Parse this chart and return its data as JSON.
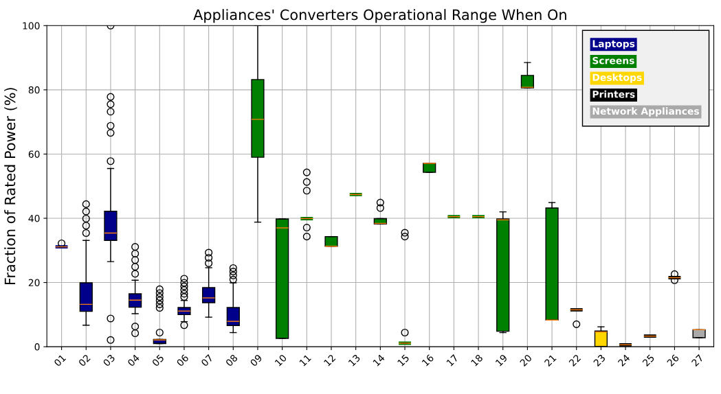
{
  "chart_data": {
    "type": "box",
    "title": "Appliances' Converters Operational Range When On",
    "ylabel": "Fraction of Rated Power (%)",
    "categories": [
      "01",
      "02",
      "03",
      "04",
      "05",
      "06",
      "07",
      "08",
      "09",
      "10",
      "11",
      "12",
      "13",
      "14",
      "15",
      "16",
      "17",
      "18",
      "19",
      "20",
      "21",
      "22",
      "23",
      "24",
      "25",
      "26",
      "27"
    ],
    "ylim": [
      0,
      100
    ],
    "yticks": [
      0,
      20,
      40,
      60,
      80,
      100
    ],
    "grid": true,
    "legend": "top right",
    "series": [
      {
        "name": "Laptops",
        "color": "#00008b",
        "boxes": [
          {
            "low": 31.1,
            "q1": 31.1,
            "median": 31.1,
            "q3": 31.1,
            "high": 31.1,
            "outliers": [
              32.2
            ]
          },
          {
            "low": 6.7,
            "q1": 11.0,
            "median": 13.2,
            "q3": 19.9,
            "high": 33.1,
            "outliers": [
              35.4,
              37.7,
              39.9,
              42.1,
              44.4
            ]
          },
          {
            "low": 26.5,
            "q1": 33.1,
            "median": 35.4,
            "q3": 42.2,
            "high": 55.5,
            "outliers": [
              2.1,
              8.8,
              57.8,
              66.6,
              68.8,
              73.2,
              75.5,
              77.8,
              100
            ]
          },
          {
            "low": 10.3,
            "q1": 12.3,
            "median": 14.5,
            "q3": 16.5,
            "high": 20.7,
            "outliers": [
              4.2,
              6.3,
              22.7,
              24.9,
              27.0,
              29.0,
              31.1
            ]
          },
          {
            "low": 1.0,
            "q1": 1.0,
            "median": 2.1,
            "q3": 2.3,
            "high": 2.3,
            "outliers": [
              4.4,
              12.1,
              13.2,
              14.4,
              15.5,
              16.7,
              17.9
            ]
          },
          {
            "low": 7.8,
            "q1": 10.0,
            "median": 11.1,
            "q3": 12.2,
            "high": 14.4,
            "outliers": [
              6.7,
              15.5,
              16.5,
              17.7,
              18.8,
              19.9,
              21.2
            ]
          },
          {
            "low": 9.2,
            "q1": 13.7,
            "median": 15.2,
            "q3": 18.4,
            "high": 24.6,
            "outliers": [
              26.0,
              27.7,
              29.3
            ]
          },
          {
            "low": 4.4,
            "q1": 6.6,
            "median": 7.9,
            "q3": 12.2,
            "high": 19.9,
            "outliers": [
              20.9,
              22.2,
              23.4,
              24.5
            ]
          },
          null,
          null,
          null,
          null,
          null,
          null,
          null,
          null,
          null,
          null,
          null,
          null,
          null,
          null,
          null,
          null,
          null,
          null,
          null
        ]
      },
      {
        "name": "Screens",
        "color": "#008000",
        "boxes": [
          null,
          null,
          null,
          null,
          null,
          null,
          null,
          null,
          {
            "low": 38.8,
            "q1": 59.0,
            "median": 70.8,
            "q3": 83.2,
            "high": 100
          },
          {
            "low": 2.6,
            "q1": 2.6,
            "median": 37.0,
            "q3": 39.8,
            "high": 39.8
          },
          {
            "low": 39.9,
            "q1": 39.9,
            "median": 39.9,
            "q3": 39.9,
            "high": 39.9,
            "outliers": [
              34.3,
              37.1,
              48.6,
              51.3,
              54.3
            ]
          },
          {
            "low": 31.3,
            "q1": 31.3,
            "median": 31.3,
            "q3": 34.3,
            "high": 34.3
          },
          {
            "low": 47.4,
            "q1": 47.4,
            "median": 47.4,
            "q3": 47.4,
            "high": 47.4
          },
          {
            "low": 38.2,
            "q1": 38.2,
            "median": 38.4,
            "q3": 39.9,
            "high": 39.9,
            "outliers": [
              43.2,
              44.9
            ]
          },
          {
            "low": 1.1,
            "q1": 1.1,
            "median": 1.1,
            "q3": 1.1,
            "high": 1.1,
            "outliers": [
              4.4,
              34.3,
              35.5
            ]
          },
          {
            "low": 54.3,
            "q1": 54.3,
            "median": 57.1,
            "q3": 57.1,
            "high": 57.1
          },
          {
            "low": 40.5,
            "q1": 40.5,
            "median": 40.5,
            "q3": 40.5,
            "high": 40.5
          },
          {
            "low": 40.5,
            "q1": 40.5,
            "median": 40.5,
            "q3": 40.5,
            "high": 40.5
          },
          {
            "low": 4.4,
            "q1": 4.8,
            "median": 39.5,
            "q3": 39.8,
            "high": 42.0
          },
          {
            "low": 80.6,
            "q1": 80.6,
            "median": 80.8,
            "q3": 84.5,
            "high": 88.5
          },
          {
            "low": 8.3,
            "q1": 8.3,
            "median": 8.3,
            "q3": 43.2,
            "high": 44.9
          },
          null,
          null,
          null,
          null,
          null,
          null
        ]
      },
      {
        "name": "Desktops",
        "color": "#ffd700",
        "boxes": [
          null,
          null,
          null,
          null,
          null,
          null,
          null,
          null,
          null,
          null,
          null,
          null,
          null,
          null,
          null,
          null,
          null,
          null,
          null,
          null,
          null,
          null,
          {
            "low": 0.1,
            "q1": 0.1,
            "median": 4.6,
            "q3": 4.9,
            "high": 6.2
          },
          null,
          null,
          null,
          null
        ]
      },
      {
        "name": "Printers",
        "color": "#000000",
        "boxes": [
          null,
          null,
          null,
          null,
          null,
          null,
          null,
          null,
          null,
          null,
          null,
          null,
          null,
          null,
          null,
          null,
          null,
          null,
          null,
          null,
          null,
          {
            "low": 11.5,
            "q1": 11.5,
            "median": 11.5,
            "q3": 11.5,
            "high": 11.5,
            "outliers": [
              7.0
            ]
          },
          null,
          {
            "low": 0.6,
            "q1": 0.6,
            "median": 0.6,
            "q3": 0.6,
            "high": 0.6
          },
          {
            "low": 3.3,
            "q1": 3.3,
            "median": 3.3,
            "q3": 3.3,
            "high": 3.3
          },
          {
            "low": 21.5,
            "q1": 21.5,
            "median": 21.5,
            "q3": 21.5,
            "high": 21.5,
            "outliers": [
              20.7,
              22.6
            ]
          },
          null
        ]
      },
      {
        "name": "Network Appliances",
        "color": "#a9a9a9",
        "boxes": [
          null,
          null,
          null,
          null,
          null,
          null,
          null,
          null,
          null,
          null,
          null,
          null,
          null,
          null,
          null,
          null,
          null,
          null,
          null,
          null,
          null,
          null,
          null,
          null,
          null,
          null,
          {
            "low": 2.8,
            "q1": 2.8,
            "median": 5.3,
            "q3": 5.3,
            "high": 5.3
          }
        ]
      }
    ]
  }
}
